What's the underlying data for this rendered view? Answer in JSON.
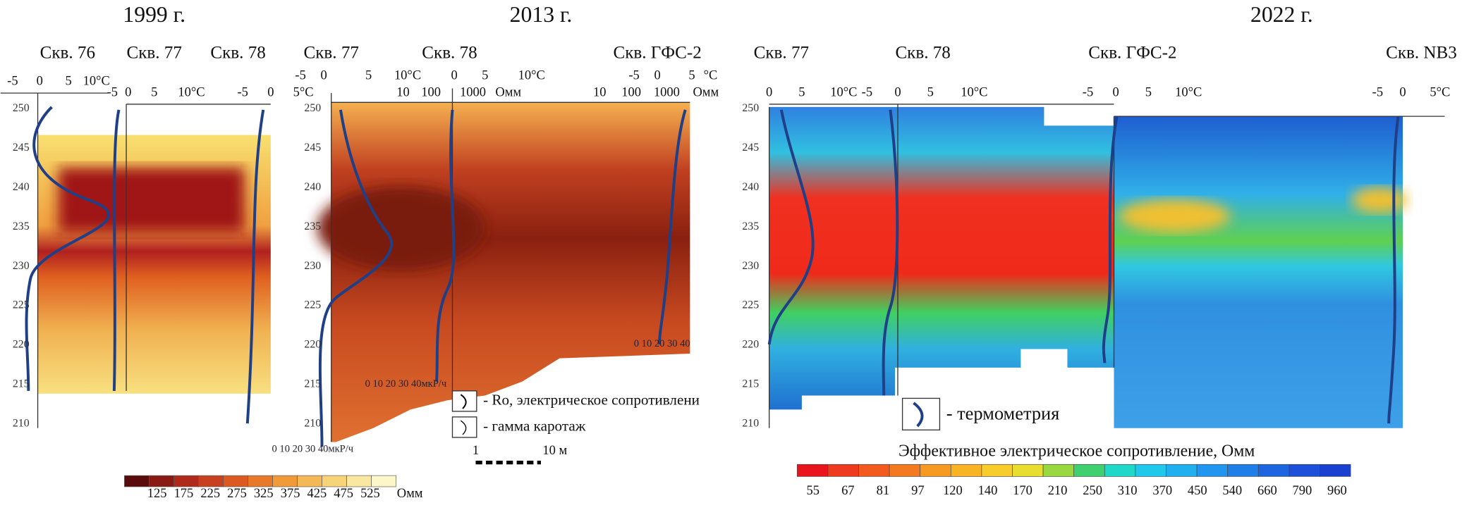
{
  "panels": [
    {
      "year": "1999 г.",
      "wells": [
        "Скв. 76",
        "Скв. 77",
        "Скв. 78"
      ],
      "axis_labels": [
        "-5",
        "0",
        "5",
        "10°C",
        "-5",
        "0",
        "5",
        "10°C",
        "-5",
        "0"
      ],
      "depth_ticks": [
        "250",
        "245",
        "240",
        "235",
        "230",
        "225",
        "220",
        "215",
        "210"
      ]
    },
    {
      "year": "2013 г.",
      "wells": [
        "Скв. 77",
        "Скв. 78",
        "Скв. ГФС-2"
      ],
      "axis_labels": [
        "-5",
        "0",
        "5",
        "10°C",
        "5°C",
        "10",
        "100",
        "1000",
        "Омм",
        "0",
        "5",
        "10°C",
        "-5",
        "0",
        "5",
        "°C",
        "10",
        "100",
        "1000",
        "Омм"
      ],
      "depth_ticks": [
        "250",
        "245",
        "240",
        "235",
        "230",
        "225",
        "220",
        "215",
        "210"
      ],
      "gamma_axes": [
        "0   10   20   30   40мкР/ч",
        "0   10   20   30   40мкР/ч",
        "0   10   20   30   40"
      ]
    },
    {
      "year": "2022 г.",
      "wells": [
        "Скв. 77",
        "Скв. 78",
        "Скв. ГФС-2",
        "Скв. NB3"
      ],
      "axis_labels": [
        "0",
        "5",
        "10°C",
        "-5",
        "0",
        "5",
        "10°C",
        "-5",
        "0",
        "5",
        "10°C",
        "-5",
        "0",
        "5°C"
      ],
      "depth_ticks": [
        "250",
        "245",
        "240",
        "235",
        "230",
        "225",
        "220",
        "215",
        "210"
      ]
    }
  ],
  "colorbar_1999": {
    "labels": [
      "125",
      "175",
      "225",
      "275",
      "325",
      "375",
      "425",
      "475",
      "525",
      "Омм"
    ]
  },
  "colorbar_main": {
    "title": "Эффективное электрическое сопротивление, Омм",
    "labels": [
      "55",
      "67",
      "81",
      "97",
      "120",
      "140",
      "170",
      "210",
      "250",
      "310",
      "370",
      "450",
      "540",
      "660",
      "790",
      "960"
    ]
  },
  "legend": {
    "ro": "- Ro, электрическое сопротивлени",
    "gamma": "- гамма каротаж",
    "thermo": "- термометрия"
  },
  "scale_bar": {
    "start": "1",
    "end": "10 м"
  }
}
